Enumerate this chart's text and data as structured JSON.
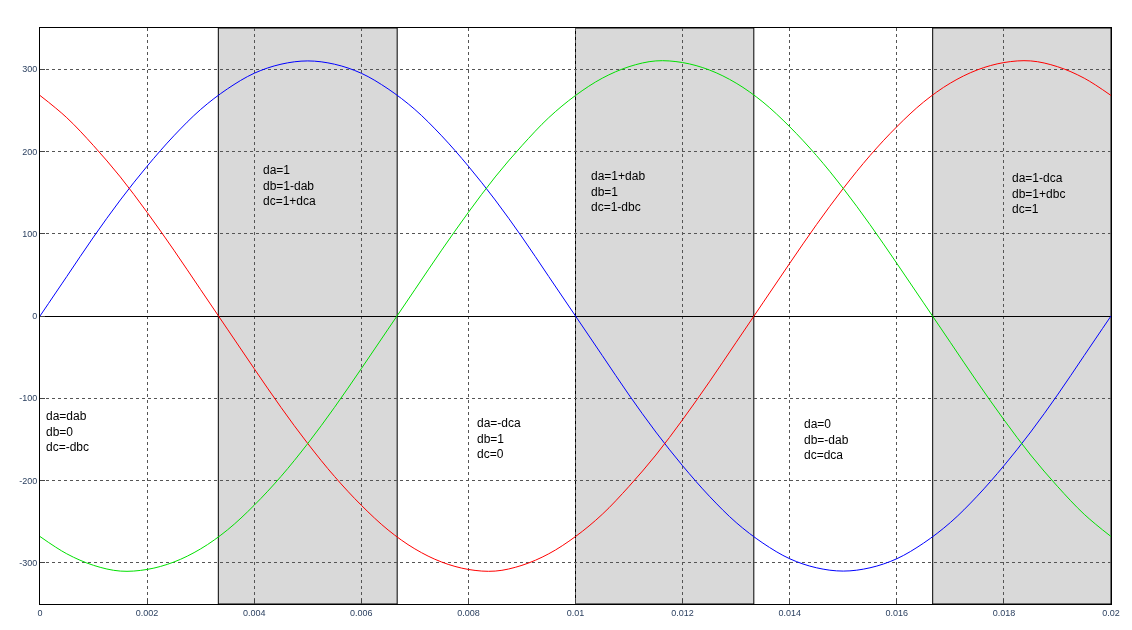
{
  "chart_data": {
    "type": "line",
    "x": [
      0,
      0.0005,
      0.001,
      0.0015,
      0.002,
      0.0025,
      0.003,
      0.0035,
      0.004,
      0.0045,
      0.005,
      0.0055,
      0.006,
      0.0065,
      0.007,
      0.0075,
      0.008,
      0.0085,
      0.009,
      0.0095,
      0.01,
      0.0105,
      0.011,
      0.0115,
      0.012,
      0.0125,
      0.013,
      0.0135,
      0.014,
      0.0145,
      0.015,
      0.0155,
      0.016,
      0.0165,
      0.017,
      0.0175,
      0.018,
      0.0185,
      0.019,
      0.0195,
      0.02
    ],
    "series": [
      {
        "color": "#0000ff",
        "values": [
          0,
          48,
          96,
          141,
          182,
          219,
          251,
          276,
          295,
          306,
          310,
          306,
          295,
          276,
          251,
          219,
          182,
          141,
          96,
          48,
          0,
          -48,
          -96,
          -141,
          -182,
          -219,
          -251,
          -276,
          -295,
          -306,
          -310,
          -306,
          -295,
          -276,
          -251,
          -219,
          -182,
          -141,
          -96,
          -48,
          0
        ]
      },
      {
        "color": "#ff0000",
        "values": [
          268,
          241,
          207,
          169,
          126,
          80,
          32,
          -16,
          -64,
          -111,
          -155,
          -195,
          -230,
          -260,
          -283,
          -299,
          -308,
          -310,
          -303,
          -289,
          -268,
          -241,
          -207,
          -169,
          -126,
          -80,
          -32,
          16,
          64,
          111,
          155,
          195,
          230,
          260,
          283,
          299,
          308,
          310,
          303,
          289,
          268
        ]
      },
      {
        "color": "#00e000",
        "values": [
          -268,
          -289,
          -303,
          -310,
          -308,
          -299,
          -283,
          -260,
          -230,
          -195,
          -155,
          -111,
          -64,
          -16,
          32,
          80,
          126,
          169,
          207,
          241,
          268,
          289,
          303,
          310,
          308,
          299,
          283,
          260,
          230,
          195,
          155,
          111,
          64,
          16,
          -32,
          -80,
          -126,
          -169,
          -207,
          -241,
          -268
        ]
      }
    ],
    "xlim": [
      0,
      0.02
    ],
    "ylim": [
      -350,
      350
    ],
    "xticks": [
      0,
      0.002,
      0.004,
      0.006,
      0.008,
      0.01,
      0.012,
      0.014,
      0.016,
      0.018,
      0.02
    ],
    "yticks": [
      -300,
      -200,
      -100,
      0,
      100,
      200,
      300
    ],
    "grid": true,
    "marker": "none",
    "line_style": "solid",
    "bands": [
      {
        "axis": "x",
        "from": 0.00333,
        "to": 0.00667,
        "color": "#d9d9d9"
      },
      {
        "axis": "x",
        "from": 0.01,
        "to": 0.01333,
        "color": "#d9d9d9"
      },
      {
        "axis": "x",
        "from": 0.01667,
        "to": 0.02,
        "color": "#d9d9d9"
      }
    ],
    "annotations": [
      "da=dab\ndb=0\ndc=-dbc",
      "da=1\ndb=1-dab\ndc=1+dca",
      "da=-dca\ndb=1\ndc=0",
      "da=1+dab\ndb=1\ndc=1-dbc",
      "da=0\ndb=-dab\ndc=dca",
      "da=1-dca\ndb=1+dbc\ndc=1"
    ]
  }
}
